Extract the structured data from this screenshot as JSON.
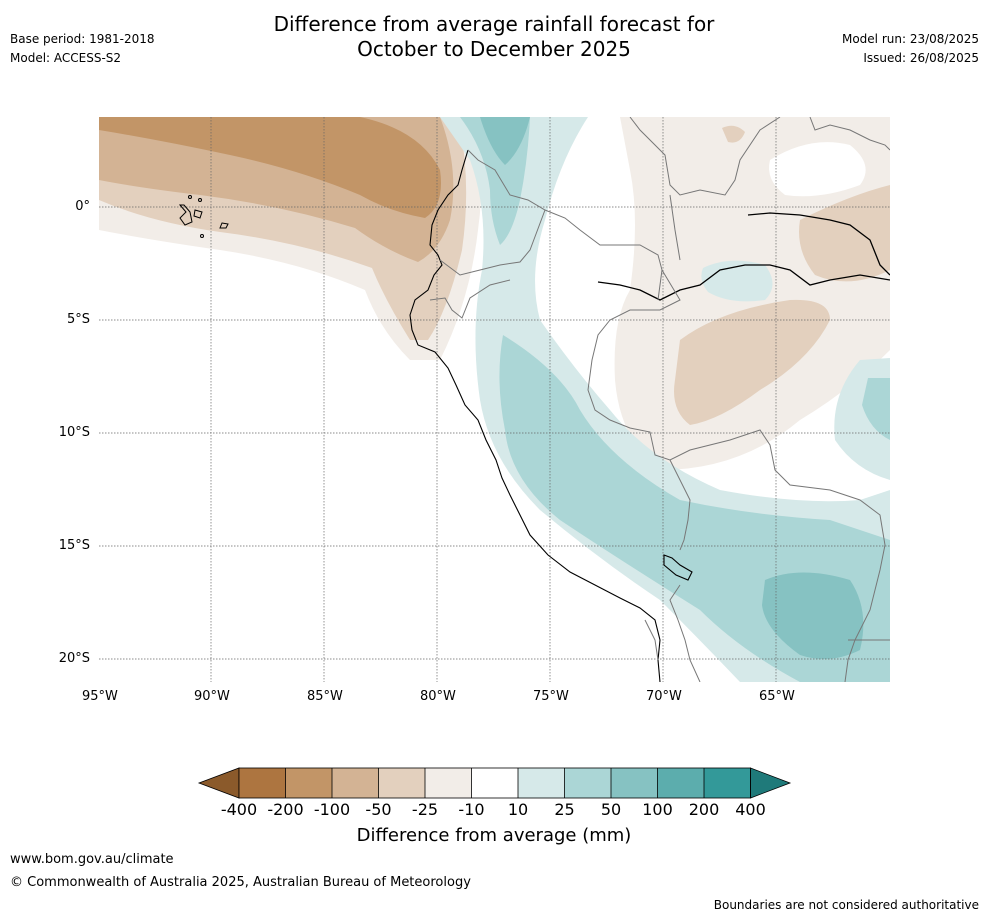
{
  "header": {
    "title_line1": "Difference from average rainfall forecast for",
    "title_line2": "October to December 2025",
    "base_period": "Base period: 1981-2018",
    "model": "Model: ACCESS-S2",
    "model_run": "Model run: 23/08/2025",
    "issued": "Issued: 26/08/2025"
  },
  "map": {
    "lon_labels": [
      "95°W",
      "90°W",
      "85°W",
      "80°W",
      "75°W",
      "70°W",
      "65°W"
    ],
    "lat_labels": [
      "0°",
      "5°S",
      "10°S",
      "15°S",
      "20°S"
    ]
  },
  "colorbar": {
    "ticks": [
      "-400",
      "-200",
      "-100",
      "-50",
      "-25",
      "-10",
      "10",
      "25",
      "50",
      "100",
      "200",
      "400"
    ],
    "colors": [
      "#8b5a2b",
      "#ad7540",
      "#c29567",
      "#d3b394",
      "#e3d0be",
      "#f2ede8",
      "#ffffff",
      "#d6e9e9",
      "#abd6d6",
      "#86c2c2",
      "#5cadad",
      "#339999",
      "#1f7a7a"
    ],
    "title": "Difference from average (mm)"
  },
  "footer": {
    "website": "www.bom.gov.au/climate",
    "copyright": "© Commonwealth of Australia 2025, Australian Bureau of Meteorology",
    "disclaimer": "Boundaries are not considered authoritative"
  }
}
